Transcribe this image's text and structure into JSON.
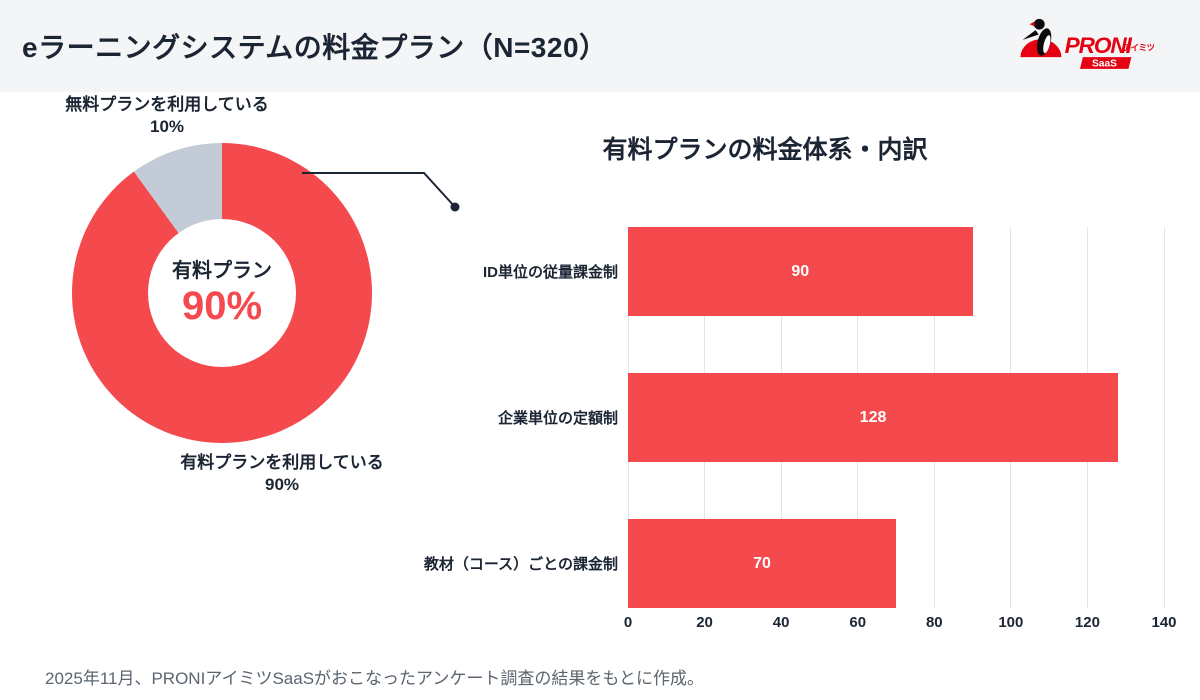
{
  "header": {
    "title": "eラーニングシステムの料金プラン（N=320）",
    "logo": {
      "brand": "PRONI",
      "kana": "アイミツ",
      "badge": "SaaS"
    }
  },
  "colors": {
    "accent_red": "#f4494d",
    "slice_gray": "#c3ccd6",
    "brand_red": "#e50012",
    "text_dark": "#1b2533",
    "grid_gray": "#e1e4e8",
    "footer_gray": "#5b6570",
    "header_bg": "#f4f5f6"
  },
  "chart_data": [
    {
      "type": "pie",
      "subtype": "donut",
      "start_angle_deg": 0,
      "direction": "clockwise",
      "slices": [
        {
          "label": "有料プランを利用している",
          "pct": "90%",
          "value": 90,
          "color": "#f4494d"
        },
        {
          "label": "無料プランを利用している",
          "pct": "10%",
          "value": 10,
          "color": "#c3ccd6"
        }
      ],
      "center_label": "有料プラン",
      "center_value": "90%"
    },
    {
      "type": "bar",
      "orientation": "horizontal",
      "title": "有料プランの料金体系・内訳",
      "categories": [
        "ID単位の従量課金制",
        "企業単位の定額制",
        "教材（コース）ごとの課金制"
      ],
      "values": [
        90,
        128,
        70
      ],
      "value_labels": [
        "90",
        "128",
        "70"
      ],
      "bar_color": "#f4494d",
      "xlim": [
        0,
        140
      ],
      "xticks": [
        0,
        20,
        40,
        60,
        80,
        100,
        120,
        140
      ],
      "grid": true,
      "legend": false
    }
  ],
  "footer": {
    "note": "2025年11月、PRONIアイミツSaaSがおこなったアンケート調査の結果をもとに作成。"
  }
}
